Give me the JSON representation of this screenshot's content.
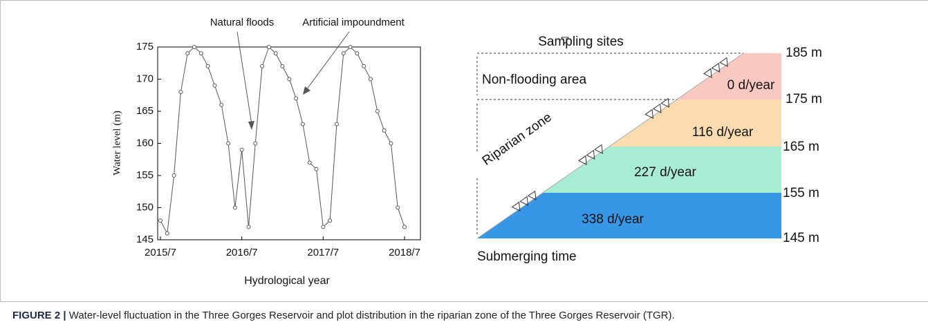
{
  "chart_data": {
    "type": "line",
    "ylabel": "Water level (m)",
    "xlabel": "Hydrological year",
    "x": [
      "2015/7",
      "2015/8",
      "2015/9",
      "2015/10",
      "2015/11",
      "2015/12",
      "2016/1",
      "2016/2",
      "2016/3",
      "2016/4",
      "2016/5",
      "2016/6",
      "2016/7",
      "2016/8",
      "2016/9",
      "2016/10",
      "2016/11",
      "2016/12",
      "2017/1",
      "2017/2",
      "2017/3",
      "2017/4",
      "2017/5",
      "2017/6",
      "2017/7",
      "2017/8",
      "2017/9",
      "2017/10",
      "2017/11",
      "2017/12",
      "2018/1",
      "2018/2",
      "2018/3",
      "2018/4",
      "2018/5",
      "2018/6",
      "2018/7"
    ],
    "values": [
      148,
      146,
      155,
      168,
      174,
      175,
      174,
      172,
      169,
      166,
      160,
      150,
      159,
      147,
      160,
      172,
      175,
      174,
      172,
      170,
      167,
      163,
      157,
      156,
      147,
      148,
      163,
      174,
      175,
      174,
      172,
      170,
      165,
      162,
      160,
      150,
      147
    ],
    "color": "#555555",
    "xticks": [
      "2015/7",
      "2016/7",
      "2017/7",
      "2018/7"
    ],
    "ylim": [
      145,
      175
    ],
    "yticks": [
      145,
      150,
      155,
      160,
      165,
      170,
      175
    ],
    "annotations": [
      "Natural floods",
      "Artificial impoundment"
    ]
  },
  "diagram": {
    "legend": "Sampling sites",
    "levels": [
      "185 m",
      "175 m",
      "165 m",
      "155 m",
      "145 m"
    ],
    "zones": [
      "Non-flooding area",
      "Riparian zone"
    ],
    "bands": [
      "0 d/year",
      "116 d/year",
      "227 d/year",
      "338 d/year"
    ],
    "footer": "Submerging time"
  },
  "caption": {
    "label": "FIGURE 2 |",
    "text": "Water-level fluctuation in the Three Gorges Reservoir and plot distribution in the riparian zone of the Three Gorges Reservoir (TGR)."
  }
}
